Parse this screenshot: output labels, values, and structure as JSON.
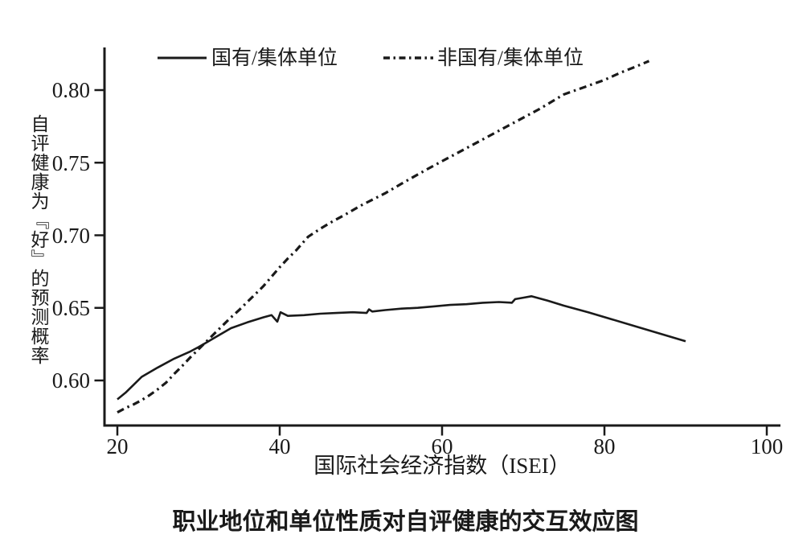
{
  "figure": {
    "caption": "职业地位和单位性质对自评健康的交互效应图"
  },
  "colors": {
    "line": "#1a1a1a",
    "background": "#ffffff",
    "text": "#1a1a1a"
  },
  "chart_data": {
    "type": "line",
    "title": "职业地位和单位性质对自评健康的交互效应图",
    "xlabel": "国际社会经济指数（ISEI）",
    "ylabel": "自评健康为『好』的预测概率",
    "xlim": [
      18,
      102
    ],
    "ylim": [
      0.57,
      0.83
    ],
    "xticks": [
      20,
      40,
      60,
      80,
      100
    ],
    "yticks": [
      0.8,
      0.75,
      0.7,
      0.65,
      0.6
    ],
    "xtick_labels": [
      "20",
      "40",
      "60",
      "80",
      "100"
    ],
    "ytick_labels": [
      "0.80",
      "0.75",
      "0.70",
      "0.65",
      "0.60"
    ],
    "grid": false,
    "legend_position": "top-inside",
    "series": [
      {
        "name": "国有/集体单位",
        "line_style": "solid",
        "points": [
          [
            20,
            0.587
          ],
          [
            21,
            0.5915
          ],
          [
            22,
            0.597
          ],
          [
            23,
            0.6025
          ],
          [
            25,
            0.609
          ],
          [
            27,
            0.615
          ],
          [
            29,
            0.62
          ],
          [
            30,
            0.623
          ],
          [
            32,
            0.6295
          ],
          [
            34,
            0.636
          ],
          [
            36,
            0.64
          ],
          [
            38,
            0.6435
          ],
          [
            39,
            0.645
          ],
          [
            39.7,
            0.6405
          ],
          [
            40.1,
            0.647
          ],
          [
            41,
            0.6445
          ],
          [
            43,
            0.645
          ],
          [
            45,
            0.646
          ],
          [
            47,
            0.6465
          ],
          [
            49,
            0.647
          ],
          [
            50.7,
            0.6465
          ],
          [
            51,
            0.649
          ],
          [
            51.4,
            0.6475
          ],
          [
            53,
            0.6485
          ],
          [
            55,
            0.6495
          ],
          [
            57,
            0.65
          ],
          [
            59,
            0.651
          ],
          [
            61,
            0.652
          ],
          [
            63,
            0.6525
          ],
          [
            65,
            0.6535
          ],
          [
            67,
            0.654
          ],
          [
            68.6,
            0.6535
          ],
          [
            69,
            0.656
          ],
          [
            70,
            0.657
          ],
          [
            71,
            0.658
          ],
          [
            73,
            0.655
          ],
          [
            75,
            0.6515
          ],
          [
            78,
            0.647
          ],
          [
            81,
            0.642
          ],
          [
            84,
            0.637
          ],
          [
            87,
            0.632
          ],
          [
            90,
            0.627
          ]
        ]
      },
      {
        "name": "非国有/集体单位",
        "line_style": "dash-dot",
        "points": [
          [
            20,
            0.578
          ],
          [
            21,
            0.581
          ],
          [
            22,
            0.5835
          ],
          [
            23,
            0.5865
          ],
          [
            24,
            0.59
          ],
          [
            25,
            0.594
          ],
          [
            26,
            0.5985
          ],
          [
            27,
            0.6045
          ],
          [
            28,
            0.61
          ],
          [
            29,
            0.616
          ],
          [
            30,
            0.6215
          ],
          [
            31,
            0.627
          ],
          [
            32,
            0.6325
          ],
          [
            33,
            0.638
          ],
          [
            34,
            0.6435
          ],
          [
            35,
            0.6485
          ],
          [
            36,
            0.654
          ],
          [
            37,
            0.6595
          ],
          [
            38,
            0.665
          ],
          [
            39,
            0.6715
          ],
          [
            40,
            0.678
          ],
          [
            41,
            0.684
          ],
          [
            42,
            0.6895
          ],
          [
            43.5,
            0.699
          ],
          [
            45,
            0.7045
          ],
          [
            46.5,
            0.7095
          ],
          [
            48,
            0.714
          ],
          [
            50,
            0.7205
          ],
          [
            53,
            0.729
          ],
          [
            55,
            0.7355
          ],
          [
            58,
            0.745
          ],
          [
            60,
            0.751
          ],
          [
            63,
            0.76
          ],
          [
            65,
            0.766
          ],
          [
            68,
            0.775
          ],
          [
            70,
            0.781
          ],
          [
            72,
            0.787
          ],
          [
            75,
            0.797
          ],
          [
            78,
            0.803
          ],
          [
            80,
            0.807
          ],
          [
            82,
            0.812
          ],
          [
            84,
            0.8165
          ],
          [
            85.5,
            0.82
          ]
        ]
      }
    ]
  }
}
